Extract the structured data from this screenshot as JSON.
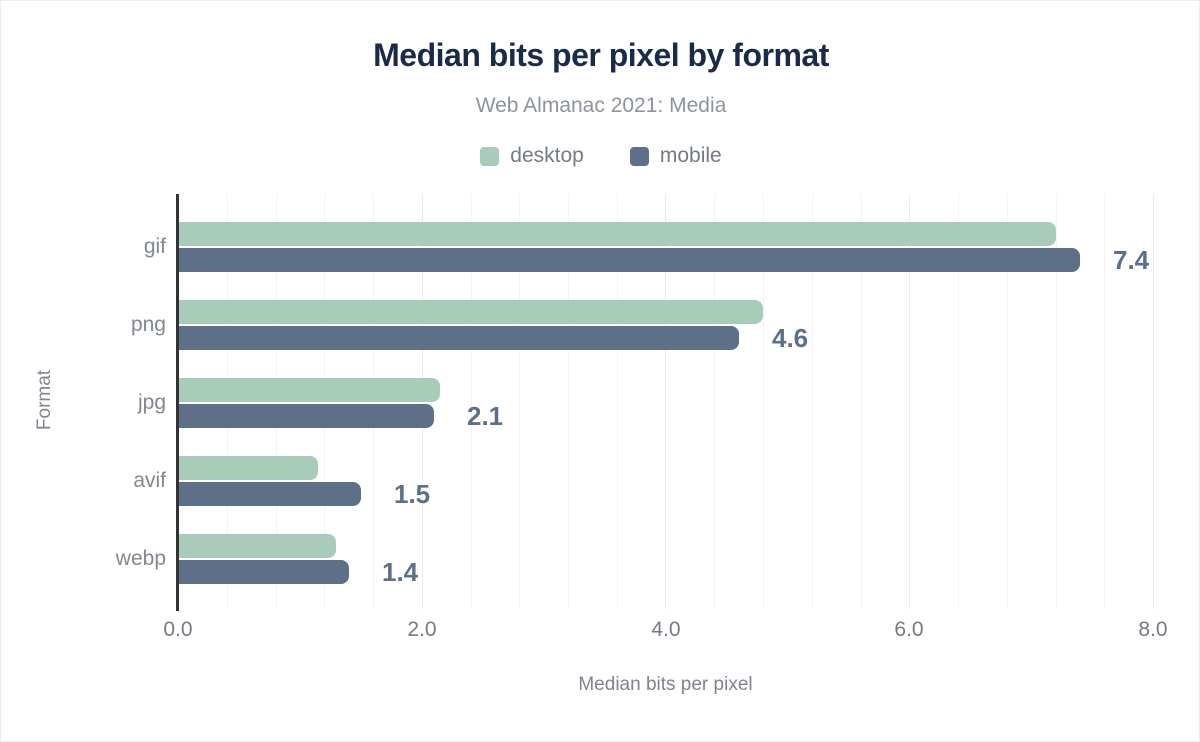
{
  "header": {
    "title": "Median bits per pixel by format",
    "subtitle": "Web Almanac 2021: Media"
  },
  "legend": [
    {
      "name": "desktop",
      "color": "#a9cbb9"
    },
    {
      "name": "mobile",
      "color": "#5d7088"
    }
  ],
  "chart_data": {
    "type": "bar",
    "orientation": "horizontal",
    "title": "Median bits per pixel by format",
    "subtitle": "Web Almanac 2021: Media",
    "xlabel": "Median bits per pixel",
    "ylabel": "Format",
    "categories": [
      "gif",
      "png",
      "jpg",
      "avif",
      "webp"
    ],
    "series": [
      {
        "name": "desktop",
        "color": "#a9cbb9",
        "values": [
          7.2,
          4.8,
          2.15,
          1.15,
          1.3
        ]
      },
      {
        "name": "mobile",
        "color": "#5d7088",
        "values": [
          7.4,
          4.6,
          2.1,
          1.5,
          1.4
        ]
      }
    ],
    "bar_labels": [
      "7.4",
      "4.6",
      "2.1",
      "1.5",
      "1.4"
    ],
    "bar_label_series": "mobile",
    "xlim": [
      0,
      8
    ],
    "xticks": [
      0.0,
      2.0,
      4.0,
      6.0,
      8.0
    ],
    "xtick_labels": [
      "0.0",
      "2.0",
      "4.0",
      "6.0",
      "8.0"
    ],
    "grid": {
      "vertical_minor_step": 0.4,
      "vertical_major_step": 2.0
    },
    "legend_position": "top"
  },
  "colors": {
    "title": "#1a2b49",
    "subtitle": "#8e9499",
    "value_label": "#5d7088",
    "axis_line": "#333336",
    "tick_label": "#757b82",
    "category_label": "#82878f",
    "gridline_minor": "#f3f3f4",
    "gridline_major": "#ebebed"
  }
}
